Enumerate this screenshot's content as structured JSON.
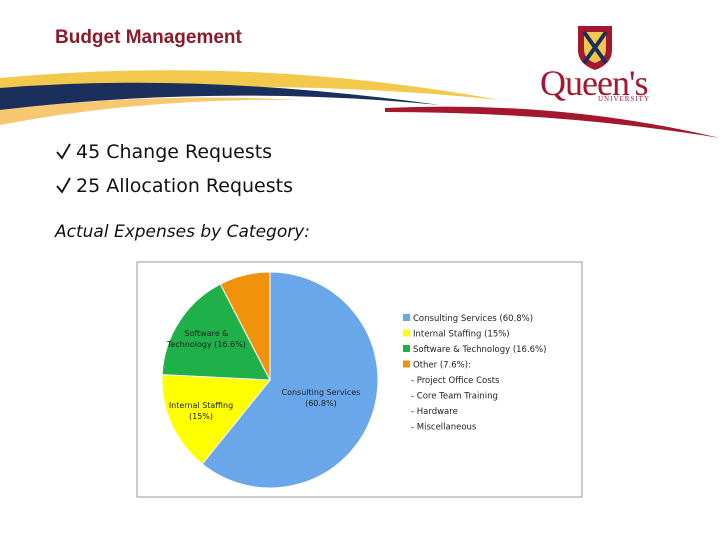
{
  "header": {
    "title": "Budget Management",
    "logo": {
      "name": "Queen's",
      "sub": "UNIVERSITY"
    }
  },
  "bullets": [
    "45 Change Requests",
    "25 Allocation Requests"
  ],
  "subtitle": "Actual Expenses by Category:",
  "chart_data": {
    "type": "pie",
    "categories": [
      "Consulting Services (60.8%)",
      "Internal Staffing (15%)",
      "Software & Technology (16.6%)",
      "Other (7.6%):"
    ],
    "values": [
      60.8,
      15,
      16.6,
      7.6
    ],
    "value_labels": [
      "Consulting Services (60.8%)",
      "Internal Staffing (15%)",
      "Software & Technology (16.6%)",
      null
    ],
    "colors": [
      "#6aa6ea",
      "#ffff00",
      "#1fb04a",
      "#f0920a"
    ],
    "legend_notes": [
      "- Project Office Costs",
      "- Core Team Training",
      "- Hardware",
      "- Miscellaneous"
    ]
  }
}
